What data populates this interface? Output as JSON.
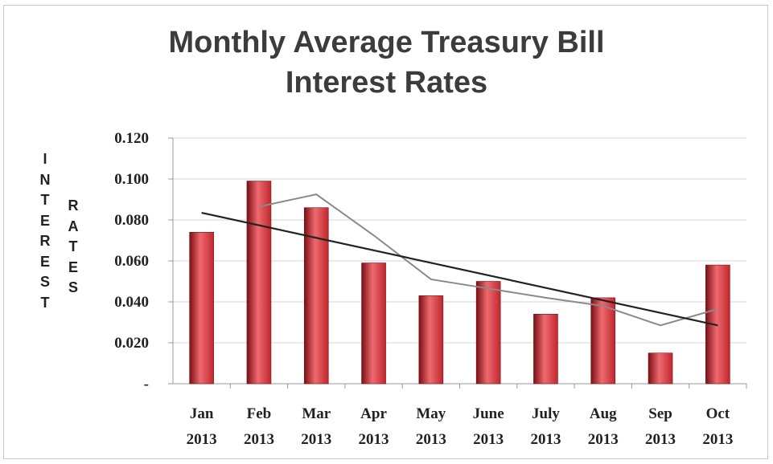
{
  "chart_data": {
    "type": "bar",
    "title_lines": [
      "Monthly Average Treasury Bill",
      "Interest Rates"
    ],
    "ylabel_outer": "INTEREST",
    "ylabel_inner": "RATES",
    "categories": [
      [
        "Jan",
        "2013"
      ],
      [
        "Feb",
        "2013"
      ],
      [
        "Mar",
        "2013"
      ],
      [
        "Apr",
        "2013"
      ],
      [
        "May",
        "2013"
      ],
      [
        "June",
        "2013"
      ],
      [
        "July",
        "2013"
      ],
      [
        "Aug",
        "2013"
      ],
      [
        "Sep",
        "2013"
      ],
      [
        "Oct",
        "2013"
      ]
    ],
    "values": [
      0.074,
      0.099,
      0.086,
      0.059,
      0.043,
      0.05,
      0.034,
      0.042,
      0.015,
      0.058
    ],
    "moving_average": [
      null,
      0.0865,
      0.0925,
      0.0725,
      0.051,
      0.0465,
      0.042,
      0.038,
      0.0285,
      0.0365
    ],
    "trendline": [
      0.0835,
      0.0285
    ],
    "ylim": [
      0,
      0.12
    ],
    "yticks": [
      0,
      0.02,
      0.04,
      0.06,
      0.08,
      0.1,
      0.12
    ],
    "ytick_labels": [
      "-",
      "0.020",
      "0.040",
      "0.060",
      "0.080",
      "0.100",
      "0.120"
    ],
    "grid": true,
    "colors": {
      "bar": "#c0272d",
      "bar_light": "#ee6a6f",
      "bar_dark": "#7a0f14",
      "trend": "#222222",
      "average": "#8a8a8a",
      "grid": "#d4d4d4"
    }
  }
}
